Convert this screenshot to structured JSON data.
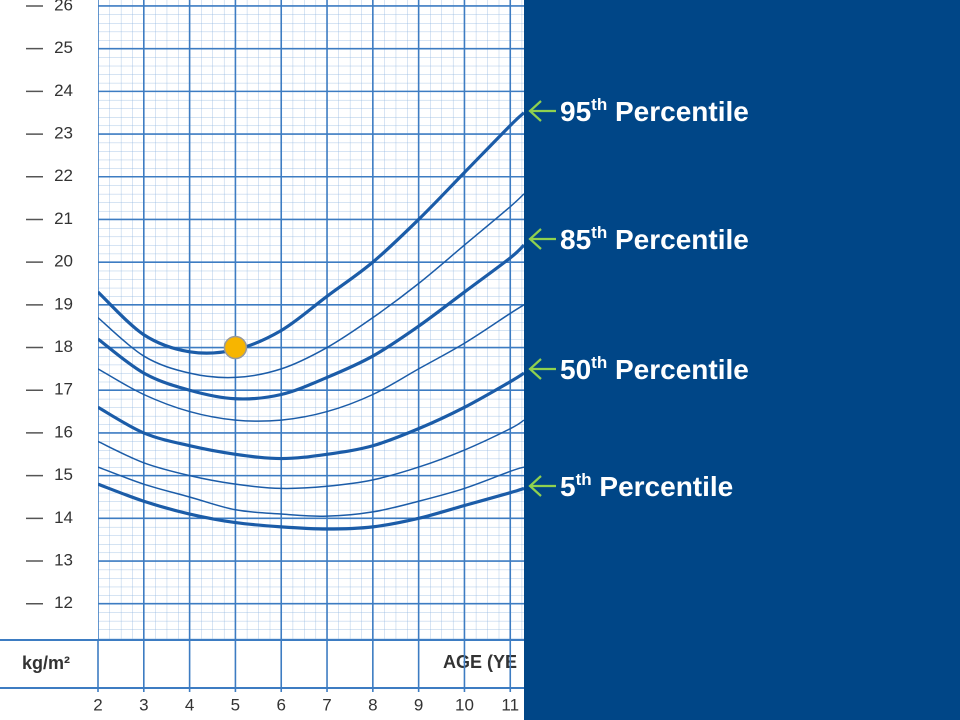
{
  "chart_data": {
    "type": "line",
    "y_label": "kg/m²",
    "x_label": "AGE (YE",
    "x": [
      2,
      3,
      4,
      5,
      6,
      7,
      8,
      9,
      10,
      11,
      11.3
    ],
    "xlim": [
      2,
      11.3
    ],
    "xticks": [
      2,
      3,
      4,
      5,
      6,
      7,
      8,
      9,
      10,
      11
    ],
    "ylim": [
      11.15,
      26.14
    ],
    "yticks": [
      12,
      13,
      14,
      15,
      16,
      17,
      18,
      19,
      20,
      21,
      22,
      23,
      24,
      25,
      26
    ],
    "grid": true,
    "series": [
      {
        "color": "#1b5ca8",
        "weight": "thick",
        "values": [
          19.3,
          18.3,
          17.9,
          17.95,
          18.4,
          19.2,
          20.0,
          21.0,
          22.1,
          23.2,
          23.5
        ]
      },
      {
        "color": "#1b5ca8",
        "weight": "thin",
        "values": [
          18.7,
          17.8,
          17.4,
          17.3,
          17.5,
          18.0,
          18.7,
          19.5,
          20.4,
          21.3,
          21.6
        ]
      },
      {
        "color": "#1b5ca8",
        "weight": "thick",
        "values": [
          18.2,
          17.4,
          17.0,
          16.8,
          16.9,
          17.3,
          17.8,
          18.5,
          19.3,
          20.1,
          20.4
        ]
      },
      {
        "color": "#1b5ca8",
        "weight": "thin",
        "values": [
          17.5,
          16.9,
          16.5,
          16.3,
          16.3,
          16.5,
          16.9,
          17.5,
          18.1,
          18.8,
          19.0
        ]
      },
      {
        "color": "#1b5ca8",
        "weight": "thick",
        "values": [
          16.6,
          16.0,
          15.7,
          15.5,
          15.4,
          15.5,
          15.7,
          16.1,
          16.6,
          17.2,
          17.4
        ]
      },
      {
        "color": "#1b5ca8",
        "weight": "thin",
        "values": [
          15.8,
          15.3,
          15.0,
          14.8,
          14.7,
          14.75,
          14.9,
          15.2,
          15.6,
          16.1,
          16.3
        ]
      },
      {
        "color": "#1b5ca8",
        "weight": "thin",
        "values": [
          15.2,
          14.8,
          14.5,
          14.2,
          14.1,
          14.05,
          14.15,
          14.4,
          14.7,
          15.1,
          15.2
        ]
      },
      {
        "color": "#1b5ca8",
        "weight": "thick",
        "values": [
          14.8,
          14.4,
          14.1,
          13.9,
          13.8,
          13.75,
          13.8,
          14.0,
          14.3,
          14.6,
          14.7
        ]
      }
    ],
    "point": {
      "x": 5,
      "y": 18.0,
      "color": "#f7b500"
    },
    "annotations": [
      {
        "lead": "95",
        "sup": "th",
        "rest": " Percentile"
      },
      {
        "lead": "85",
        "sup": "th",
        "rest": " Percentile"
      },
      {
        "lead": "50",
        "sup": "th",
        "rest": " Percentile"
      },
      {
        "lead": "5",
        "sup": "th",
        "rest": " Percentile"
      }
    ]
  }
}
